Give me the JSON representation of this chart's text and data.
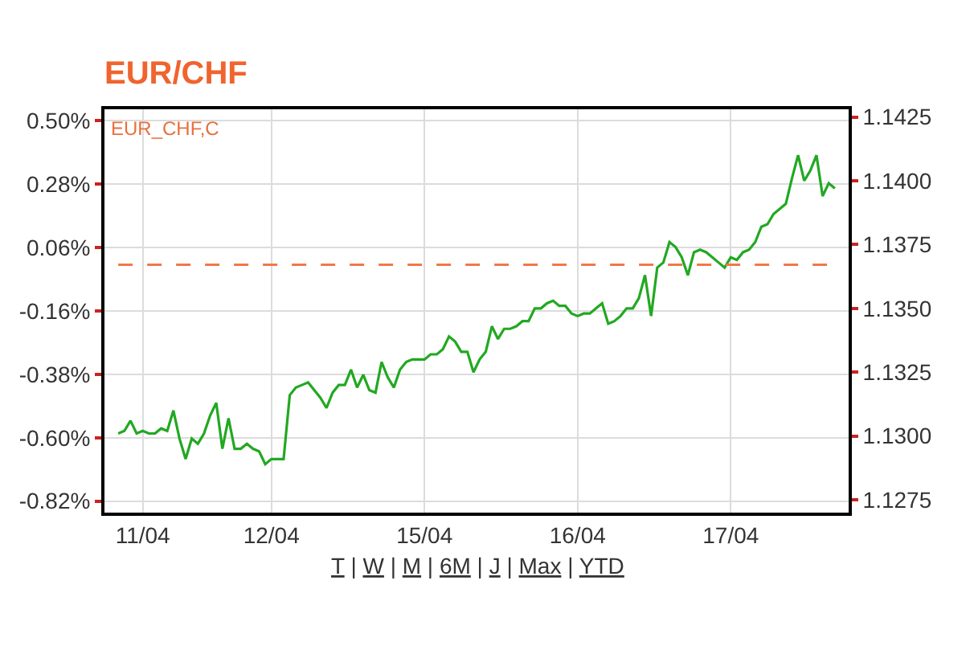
{
  "chart_data": {
    "type": "line",
    "title": "EUR/CHF",
    "annotations": [
      "EUR_CHF,C",
      "T | W | M | 6M | J | Max | YTD"
    ],
    "categories": [
      null,
      null,
      null,
      null,
      "11/04",
      null,
      null,
      null,
      null,
      null,
      null,
      null,
      null,
      null,
      null,
      null,
      null,
      null,
      null,
      null,
      null,
      null,
      null,
      null,
      null,
      "12/04",
      null,
      null,
      null,
      null,
      null,
      null,
      null,
      null,
      null,
      null,
      null,
      null,
      null,
      null,
      null,
      null,
      null,
      null,
      null,
      null,
      null,
      null,
      null,
      null,
      "15/04",
      null,
      null,
      null,
      null,
      null,
      null,
      null,
      null,
      null,
      null,
      null,
      null,
      null,
      null,
      null,
      null,
      null,
      null,
      null,
      null,
      null,
      null,
      null,
      null,
      "16/04",
      null,
      null,
      null,
      null,
      null,
      null,
      null,
      null,
      null,
      null,
      null,
      null,
      null,
      null,
      null,
      null,
      null,
      null,
      null,
      null,
      null,
      null,
      null,
      null,
      "17/04",
      null,
      null,
      null,
      null,
      null,
      null,
      null,
      null,
      null,
      null,
      null,
      null,
      null,
      null,
      null,
      null,
      null
    ],
    "ylim": [
      -0.86,
      0.54
    ],
    "yticks": [
      {
        "value": 0.5,
        "label": "0.50%"
      },
      {
        "value": 0.28,
        "label": "0.28%"
      },
      {
        "value": 0.06,
        "label": "0.06%"
      },
      {
        "value": -0.16,
        "label": "-0.16%"
      },
      {
        "value": -0.38,
        "label": "-0.38%"
      },
      {
        "value": -0.6,
        "label": "-0.60%"
      },
      {
        "value": -0.82,
        "label": "-0.82%"
      }
    ],
    "y2lim": [
      1.127,
      1.1428
    ],
    "y2ticks": [
      {
        "value": 1.1275,
        "label": "1.1275"
      },
      {
        "value": 1.13,
        "label": "1.1300"
      },
      {
        "value": 1.1325,
        "label": "1.1325"
      },
      {
        "value": 1.135,
        "label": "1.1350"
      },
      {
        "value": 1.1375,
        "label": "1.1375"
      },
      {
        "value": 1.14,
        "label": "1.1400"
      },
      {
        "value": 1.1425,
        "label": "1.1425"
      }
    ],
    "series": [
      {
        "color": "#22a822",
        "axis": "y2",
        "values": [
          1.1301,
          1.1302,
          1.1306,
          1.1301,
          1.1302,
          1.1301,
          1.1301,
          1.1303,
          1.1302,
          1.131,
          1.1299,
          1.1291,
          1.1299,
          1.1297,
          1.1301,
          1.1308,
          1.1313,
          1.1295,
          1.1307,
          1.1295,
          1.1295,
          1.1297,
          1.1295,
          1.1294,
          1.1289,
          1.1291,
          1.1291,
          1.1291,
          1.1316,
          1.1319,
          1.132,
          1.1321,
          1.1318,
          1.1315,
          1.1311,
          1.1317,
          1.132,
          1.132,
          1.1326,
          1.1319,
          1.1324,
          1.1318,
          1.1317,
          1.1329,
          1.1323,
          1.1319,
          1.1326,
          1.1329,
          1.133,
          1.133,
          1.133,
          1.1332,
          1.1332,
          1.1334,
          1.1339,
          1.1337,
          1.1333,
          1.1333,
          1.1325,
          1.133,
          1.1333,
          1.1343,
          1.1338,
          1.1342,
          1.1342,
          1.1343,
          1.1345,
          1.1345,
          1.135,
          1.135,
          1.1352,
          1.1353,
          1.1351,
          1.1351,
          1.1348,
          1.1347,
          1.1348,
          1.1348,
          1.135,
          1.1352,
          1.1344,
          1.1345,
          1.1347,
          1.135,
          1.135,
          1.1354,
          1.1363,
          1.1347,
          1.1366,
          1.1368,
          1.1376,
          1.1374,
          1.137,
          1.1363,
          1.1372,
          1.1373,
          1.1372,
          1.137,
          1.1368,
          1.1366,
          1.137,
          1.1369,
          1.1372,
          1.1373,
          1.1376,
          1.1382,
          1.1383,
          1.1387,
          1.1389,
          1.1391,
          1.1401,
          1.141,
          1.14,
          1.1404,
          1.141,
          1.1394,
          1.1399,
          1.1397
        ]
      }
    ],
    "ref_lines": [
      {
        "axis": "y",
        "value": 0,
        "color": "#f07848",
        "line_style": "dashed"
      }
    ],
    "grid": true
  }
}
